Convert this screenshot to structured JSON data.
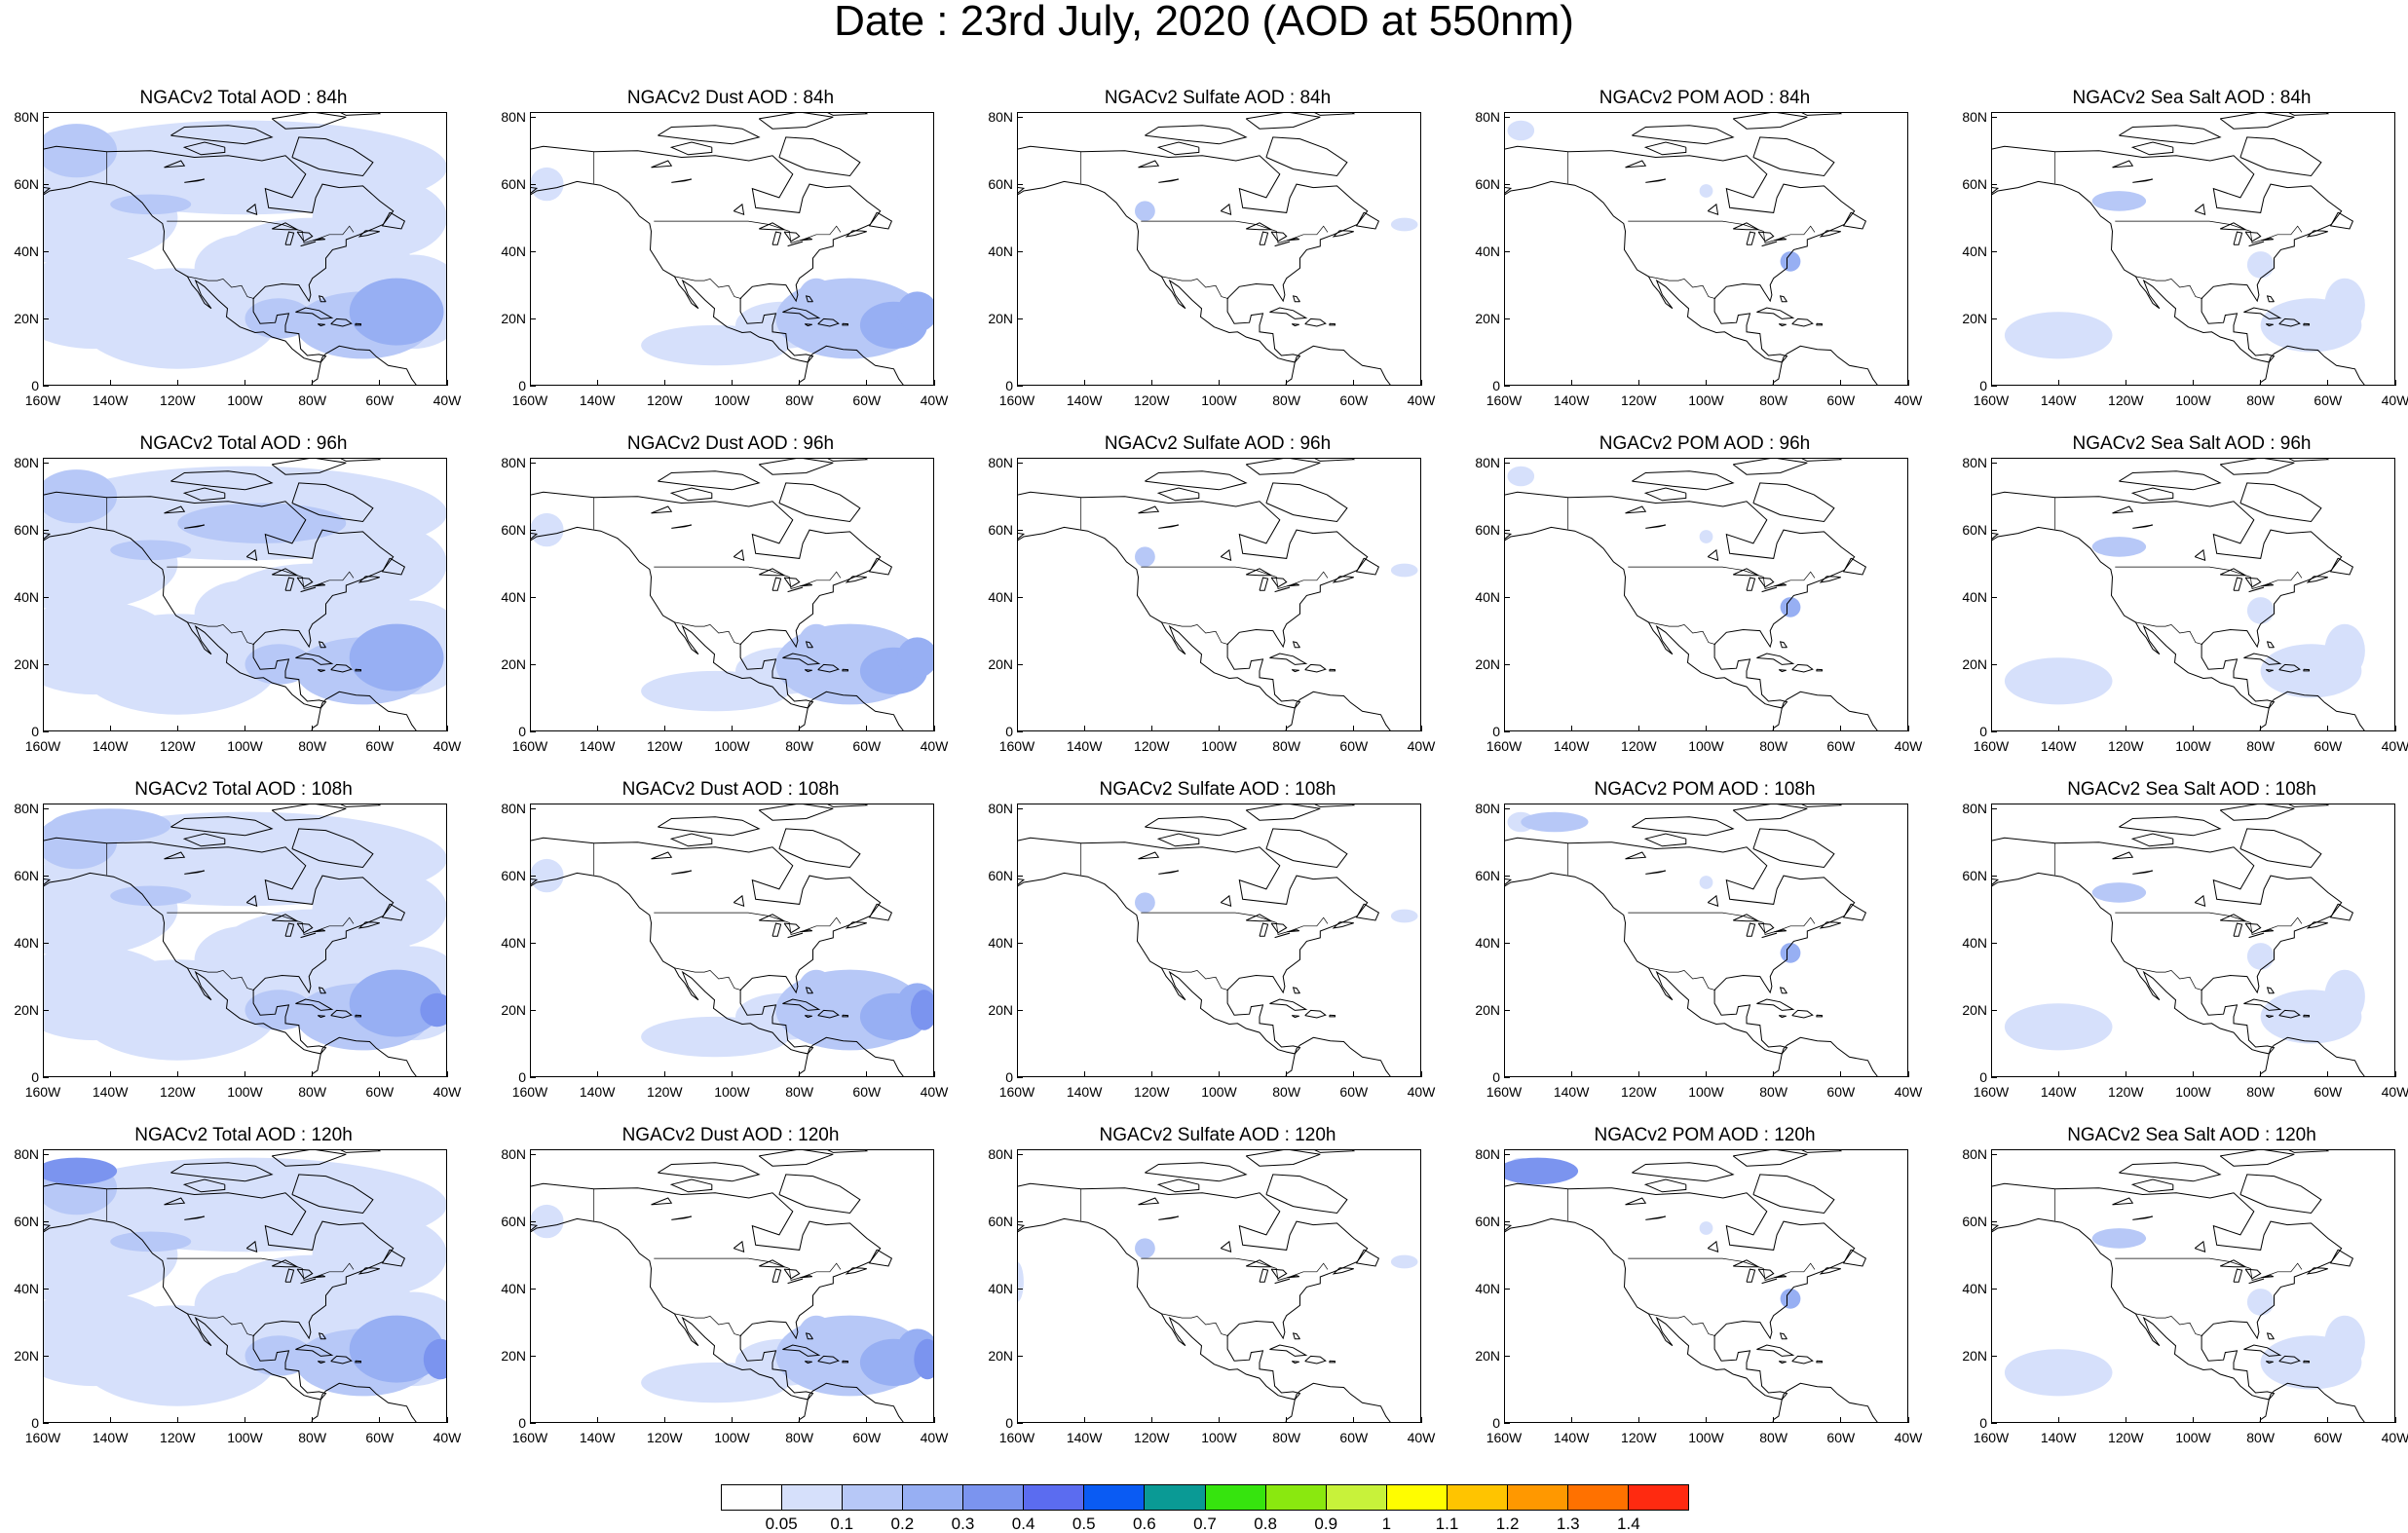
{
  "title": "Date : 23rd July, 2020 (AOD at 550nm)",
  "rows": [
    {
      "panels": [
        {
          "title": "NGACv2 Total AOD : 84h",
          "species": "total"
        },
        {
          "title": "NGACv2 Dust AOD : 84h",
          "species": "dust"
        },
        {
          "title": "NGACv2 Sulfate AOD : 84h",
          "species": "sulfate"
        },
        {
          "title": "NGACv2 POM AOD : 84h",
          "species": "pom"
        },
        {
          "title": "NGACv2 Sea Salt AOD : 84h",
          "species": "seasalt"
        }
      ]
    },
    {
      "panels": [
        {
          "title": "NGACv2 Total AOD : 96h",
          "species": "total"
        },
        {
          "title": "NGACv2 Dust AOD : 96h",
          "species": "dust"
        },
        {
          "title": "NGACv2 Sulfate AOD : 96h",
          "species": "sulfate"
        },
        {
          "title": "NGACv2 POM AOD : 96h",
          "species": "pom"
        },
        {
          "title": "NGACv2 Sea Salt AOD : 96h",
          "species": "seasalt"
        }
      ]
    },
    {
      "panels": [
        {
          "title": "NGACv2 Total AOD : 108h",
          "species": "total"
        },
        {
          "title": "NGACv2 Dust AOD : 108h",
          "species": "dust"
        },
        {
          "title": "NGACv2 Sulfate AOD : 108h",
          "species": "sulfate"
        },
        {
          "title": "NGACv2 POM AOD : 108h",
          "species": "pom"
        },
        {
          "title": "NGACv2 Sea Salt AOD : 108h",
          "species": "seasalt"
        }
      ]
    },
    {
      "panels": [
        {
          "title": "NGACv2 Total AOD : 120h",
          "species": "total"
        },
        {
          "title": "NGACv2 Dust AOD : 120h",
          "species": "dust"
        },
        {
          "title": "NGACv2 Sulfate AOD : 120h",
          "species": "sulfate"
        },
        {
          "title": "NGACv2 POM AOD : 120h",
          "species": "pom"
        },
        {
          "title": "NGACv2 Sea Salt  AOD : 120h",
          "species": "seasalt"
        }
      ]
    }
  ],
  "axes": {
    "lat_labels": [
      "80N",
      "60N",
      "40N",
      "20N",
      "0"
    ],
    "lon_labels_a": [
      "160W",
      "140W",
      "120W",
      "100W",
      "80W",
      "60W",
      "40W"
    ],
    "lon_labels_b": [
      "160W",
      "140W",
      "120W",
      "100W",
      "80W",
      "60W",
      "40W"
    ]
  },
  "colorbar": {
    "colors": [
      "#ffffff",
      "#d6e0fb",
      "#b7c8f7",
      "#97aff3",
      "#7b94ef",
      "#5b6cf0",
      "#0a5bf3",
      "#0a9a95",
      "#36e40e",
      "#8ae80f",
      "#c8f23a",
      "#fffd00",
      "#ffc400",
      "#ff9800",
      "#ff7100",
      "#ff2a10"
    ],
    "labels": [
      "0.05",
      "0.1",
      "0.2",
      "0.3",
      "0.4",
      "0.5",
      "0.6",
      "0.7",
      "0.8",
      "0.9",
      "1",
      "1.1",
      "1.2",
      "1.3",
      "1.4"
    ]
  },
  "colors": {
    "light": "#d6e0fb",
    "mid": "#b7c8f7",
    "dark": "#97aff3",
    "darker": "#7b94ef",
    "coast": "#000000"
  }
}
